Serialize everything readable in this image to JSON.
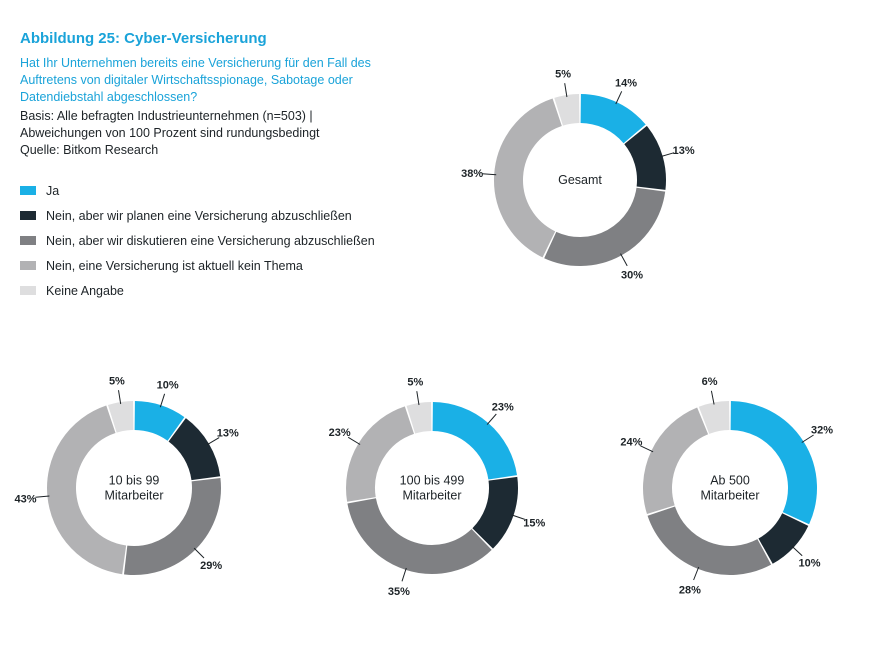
{
  "header": {
    "title": "Abbildung 25: Cyber-Versicherung",
    "question": "Hat Ihr Unternehmen bereits eine Versicherung für den Fall des Auftretens von digitaler Wirtschaftsspionage, Sabotage oder Datendiebstahl abgeschlossen?",
    "basis_line1": "Basis: Alle befragten Industrieunternehmen (n=503) |",
    "basis_line2": "Abweichungen von 100 Prozent sind rundungsbedingt",
    "source": "Quelle: Bitkom Research"
  },
  "colors": {
    "ja": "#1ab0e6",
    "planen": "#1d2a33",
    "diskutieren": "#7f8083",
    "kein_thema": "#b2b2b4",
    "keine_angabe": "#dededf"
  },
  "legend": [
    {
      "label": "Ja",
      "color": "#1ab0e6"
    },
    {
      "label": "Nein, aber wir planen eine Versicherung abzuschließen",
      "color": "#1d2a33"
    },
    {
      "label": "Nein, aber wir diskutieren eine Versicherung abzuschließen",
      "color": "#7f8083"
    },
    {
      "label": "Nein, eine Versicherung ist aktuell kein Thema",
      "color": "#b2b2b4"
    },
    {
      "label": "Keine Angabe",
      "color": "#dededf"
    }
  ],
  "chart_data": [
    {
      "type": "pie",
      "donut": true,
      "center_label": [
        "Gesamt"
      ],
      "categories": [
        "Ja",
        "Nein, aber wir planen eine Versicherung abzuschließen",
        "Nein, aber wir diskutieren eine Versicherung abzuschließen",
        "Nein, eine Versicherung ist aktuell kein Thema",
        "Keine Angabe"
      ],
      "values": [
        14,
        13,
        30,
        38,
        5
      ],
      "value_labels": [
        "14%",
        "13%",
        "30%",
        "38%",
        "5%"
      ]
    },
    {
      "type": "pie",
      "donut": true,
      "center_label": [
        "10 bis 99",
        "Mitarbeiter"
      ],
      "categories": [
        "Ja",
        "Nein, aber wir planen eine Versicherung abzuschließen",
        "Nein, aber wir diskutieren eine Versicherung abzuschließen",
        "Nein, eine Versicherung ist aktuell kein Thema",
        "Keine Angabe"
      ],
      "values": [
        10,
        13,
        29,
        43,
        5
      ],
      "value_labels": [
        "10%",
        "13%",
        "29%",
        "43%",
        "5%"
      ]
    },
    {
      "type": "pie",
      "donut": true,
      "center_label": [
        "100 bis 499",
        "Mitarbeiter"
      ],
      "categories": [
        "Ja",
        "Nein, aber wir planen eine Versicherung abzuschließen",
        "Nein, aber wir diskutieren eine Versicherung abzuschließen",
        "Nein, eine Versicherung ist aktuell kein Thema",
        "Keine Angabe"
      ],
      "values": [
        23,
        15,
        35,
        23,
        5
      ],
      "value_labels": [
        "23%",
        "15%",
        "35%",
        "23%",
        "5%"
      ]
    },
    {
      "type": "pie",
      "donut": true,
      "center_label": [
        "Ab 500",
        "Mitarbeiter"
      ],
      "categories": [
        "Ja",
        "Nein, aber wir planen eine Versicherung abzuschließen",
        "Nein, aber wir diskutieren eine Versicherung abzuschließen",
        "Nein, eine Versicherung ist aktuell kein Thema",
        "Keine Angabe"
      ],
      "values": [
        32,
        10,
        28,
        24,
        6
      ],
      "value_labels": [
        "32%",
        "10%",
        "28%",
        "24%",
        "6%"
      ]
    }
  ]
}
